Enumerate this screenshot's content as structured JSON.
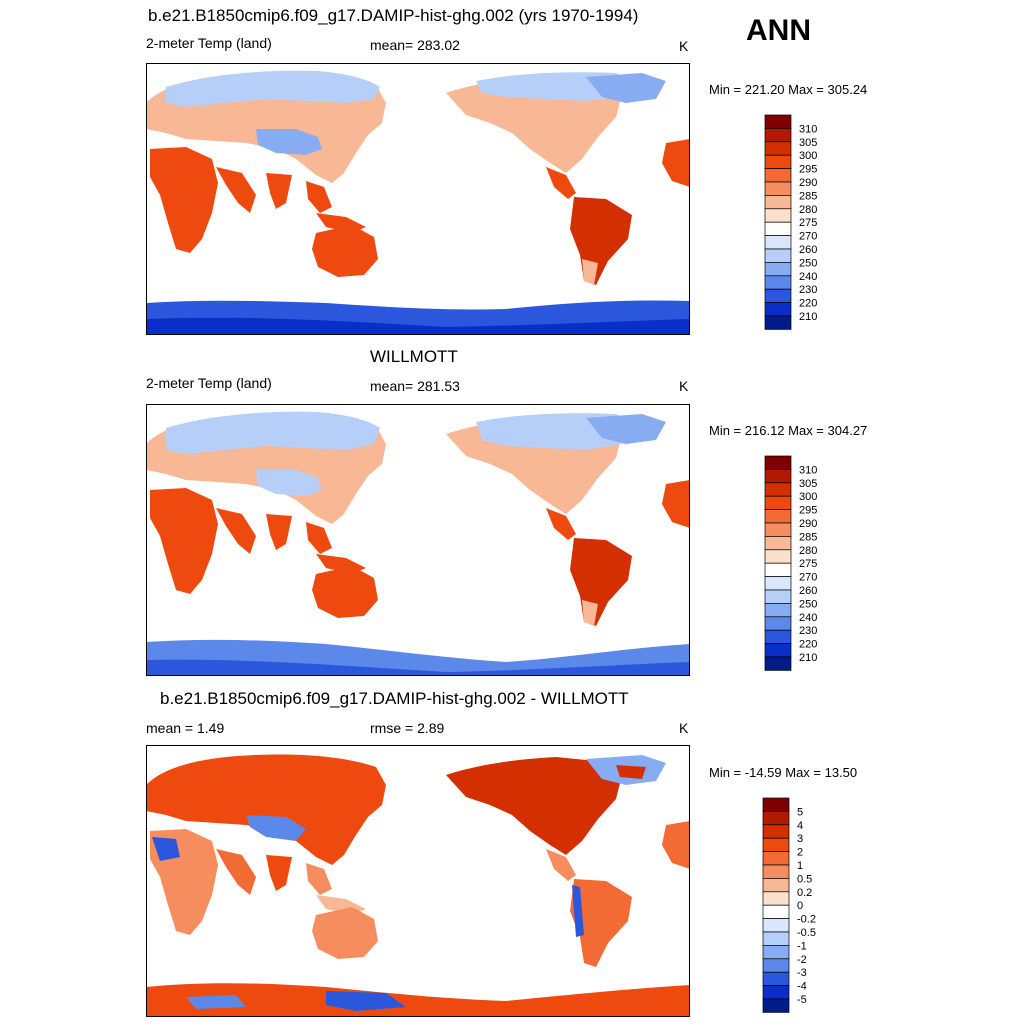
{
  "season": "ANN",
  "panels": [
    {
      "title": "b.e21.B1850cmip6.f09_g17.DAMIP-hist-ghg.002 (yrs 1970-1994)",
      "left_label": "2-meter Temp (land)",
      "center_label": "mean= 283.02",
      "units": "K",
      "minmax": "Min = 221.20 Max = 305.24",
      "palette": "abs",
      "ticks": [
        "310",
        "305",
        "300",
        "295",
        "290",
        "285",
        "280",
        "275",
        "270",
        "260",
        "250",
        "240",
        "230",
        "220",
        "210"
      ]
    },
    {
      "title": "WILLMOTT",
      "left_label": "2-meter Temp (land)",
      "center_label": "mean= 281.53",
      "units": "K",
      "minmax": "Min = 216.12 Max = 304.27",
      "palette": "abs",
      "ticks": [
        "310",
        "305",
        "300",
        "295",
        "290",
        "285",
        "280",
        "275",
        "270",
        "260",
        "250",
        "240",
        "230",
        "220",
        "210"
      ]
    },
    {
      "title": "b.e21.B1850cmip6.f09_g17.DAMIP-hist-ghg.002 - WILLMOTT",
      "left_label": "mean =   1.49",
      "center_label": "rmse =   2.89",
      "units": "K",
      "minmax": "Min = -14.59 Max =  13.50",
      "palette": "diff",
      "ticks": [
        "5",
        "4",
        "3",
        "2",
        "1",
        "0.5",
        "0.2",
        "0",
        "-0.2",
        "-0.5",
        "-1",
        "-2",
        "-3",
        "-4",
        "-5"
      ]
    }
  ],
  "colors": {
    "abs": [
      "#7f0000",
      "#b01a00",
      "#d42f00",
      "#ee4a10",
      "#f26a34",
      "#f58d5f",
      "#f8b895",
      "#fbe0cc",
      "#ffffff",
      "#d9e6fb",
      "#b5cff8",
      "#88acf1",
      "#5c88ea",
      "#2b57dd",
      "#0b2ec8",
      "#001c8a"
    ],
    "diff": [
      "#7f0000",
      "#b01a00",
      "#d42f00",
      "#ee4a10",
      "#f26a34",
      "#f58d5f",
      "#f8b895",
      "#fbe0cc",
      "#ffffff",
      "#d9e6fb",
      "#b5cff8",
      "#88acf1",
      "#5c88ea",
      "#2b57dd",
      "#0b2ec8",
      "#001c8a"
    ]
  }
}
